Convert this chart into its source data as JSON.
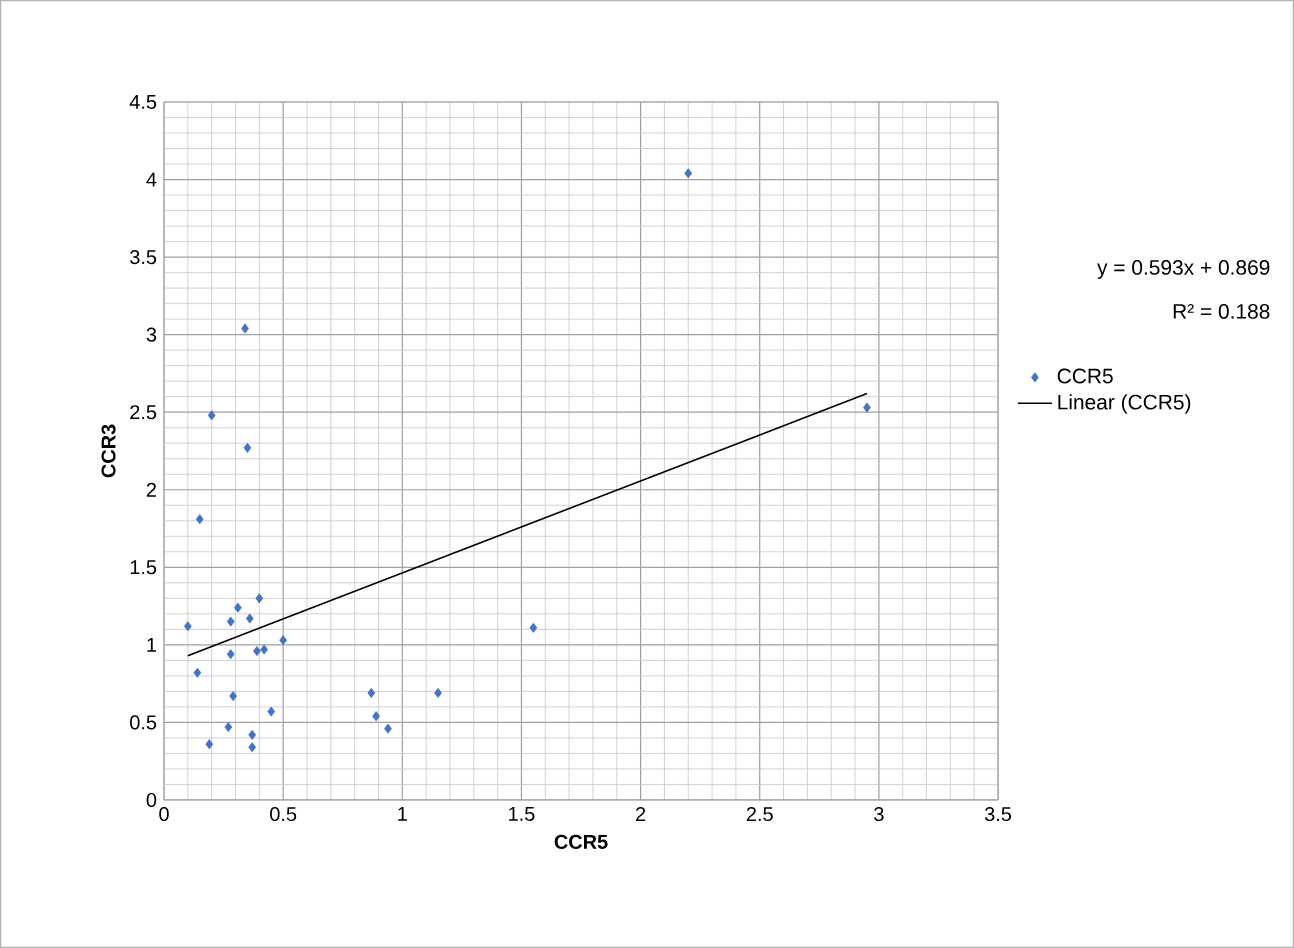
{
  "chart_data": {
    "type": "scatter",
    "xlabel": "CCR5",
    "ylabel": "CCR3",
    "xlim": [
      0,
      3.5
    ],
    "ylim": [
      0,
      4.5
    ],
    "xticks": [
      0,
      0.5,
      1,
      1.5,
      2,
      2.5,
      3,
      3.5
    ],
    "yticks": [
      0,
      0.5,
      1,
      1.5,
      2,
      2.5,
      3,
      3.5,
      4,
      4.5
    ],
    "grid": true,
    "legend": "right",
    "annotations": [
      "y = 0.593x + 0.869",
      "R² = 0.188"
    ],
    "series": [
      {
        "name": "CCR5",
        "color": "#4472c4",
        "marker": "diamond",
        "x": [
          0.1,
          0.15,
          0.14,
          0.2,
          0.19,
          0.34,
          0.35,
          0.31,
          0.28,
          0.36,
          0.4,
          0.28,
          0.39,
          0.42,
          0.5,
          0.29,
          0.27,
          0.45,
          0.37,
          0.37,
          0.87,
          0.89,
          0.94,
          1.15,
          1.55,
          2.2,
          2.95
        ],
        "values": [
          1.12,
          1.81,
          0.82,
          2.48,
          0.36,
          3.04,
          2.27,
          1.24,
          1.15,
          1.17,
          1.3,
          0.94,
          0.96,
          0.97,
          1.03,
          0.67,
          0.47,
          0.57,
          0.42,
          0.34,
          0.69,
          0.54,
          0.46,
          0.69,
          1.11,
          4.04,
          2.53
        ]
      },
      {
        "name": "Linear (CCR5)",
        "type": "line",
        "color": "#000000",
        "marker": "none",
        "line_style": "solid",
        "x": [
          0.1,
          2.95
        ],
        "values": [
          0.93,
          2.62
        ]
      }
    ]
  }
}
